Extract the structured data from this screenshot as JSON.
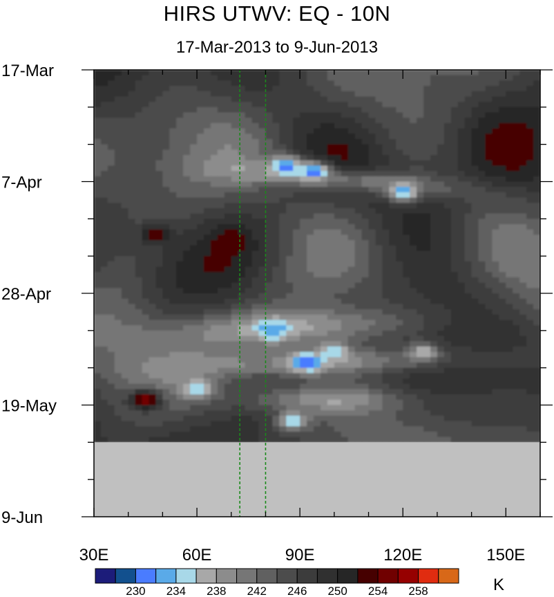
{
  "chart_data": {
    "type": "heatmap",
    "title": "HIRS UTWV: EQ - 10N",
    "subtitle": "17-Mar-2013 to 9-Jun-2013",
    "x_axis": {
      "min": 30,
      "max": 160,
      "ticks": [
        {
          "value": 30,
          "label": "30E"
        },
        {
          "value": 60,
          "label": "60E"
        },
        {
          "value": 90,
          "label": "90E"
        },
        {
          "value": 120,
          "label": "120E"
        },
        {
          "value": 150,
          "label": "150E"
        }
      ],
      "minor_step": 10
    },
    "y_axis": {
      "start": "2013-03-17",
      "end": "2013-06-09",
      "ticks": [
        {
          "date": "2013-03-17",
          "label": "17-Mar"
        },
        {
          "date": "2013-04-07",
          "label": "7-Apr"
        },
        {
          "date": "2013-04-28",
          "label": "28-Apr"
        },
        {
          "date": "2013-05-19",
          "label": "19-May"
        },
        {
          "date": "2013-06-09",
          "label": "9-Jun"
        }
      ],
      "minor_step_days": 7
    },
    "missing_data_after": "2013-05-26",
    "reference_lines": [
      {
        "x": 72.5
      },
      {
        "x": 80
      }
    ],
    "reference_line_color": "#1a8a1a",
    "colorbar": {
      "unit": "K",
      "colors": [
        "#1c1c7a",
        "#12508e",
        "#4a7cff",
        "#5aaae8",
        "#a8d8e8",
        "#a8a8a8",
        "#8c8c8c",
        "#767676",
        "#606060",
        "#4c4c4c",
        "#3c3c3c",
        "#303030",
        "#262626",
        "#460000",
        "#700000",
        "#960000",
        "#e02c10",
        "#d86818"
      ],
      "labels": [
        {
          "value": 230,
          "label": "230"
        },
        {
          "value": 234,
          "label": "234"
        },
        {
          "value": 238,
          "label": "238"
        },
        {
          "value": 242,
          "label": "242"
        },
        {
          "value": 246,
          "label": "246"
        },
        {
          "value": 250,
          "label": "250"
        },
        {
          "value": 254,
          "label": "254"
        },
        {
          "value": 258,
          "label": "258"
        }
      ],
      "first_boundary": 228,
      "step": 2
    },
    "missing_color": "#c0c0c0",
    "features": [
      {
        "x": 86,
        "date": "2013-04-04",
        "value": 229
      },
      {
        "x": 94,
        "date": "2013-04-05",
        "value": 229
      },
      {
        "x": 120,
        "date": "2013-04-09",
        "value": 231
      },
      {
        "x": 82,
        "date": "2013-05-05",
        "value": 231
      },
      {
        "x": 92,
        "date": "2013-05-11",
        "value": 229
      },
      {
        "x": 100,
        "date": "2013-05-09",
        "value": 233
      },
      {
        "x": 126,
        "date": "2013-05-09",
        "value": 235
      },
      {
        "x": 60,
        "date": "2013-05-16",
        "value": 233
      },
      {
        "x": 88,
        "date": "2013-05-22",
        "value": 233
      },
      {
        "x": 45,
        "date": "2013-05-18",
        "value": 258
      },
      {
        "x": 70,
        "date": "2013-04-18",
        "value": 254
      },
      {
        "x": 48,
        "date": "2013-04-17",
        "value": 254
      }
    ]
  }
}
